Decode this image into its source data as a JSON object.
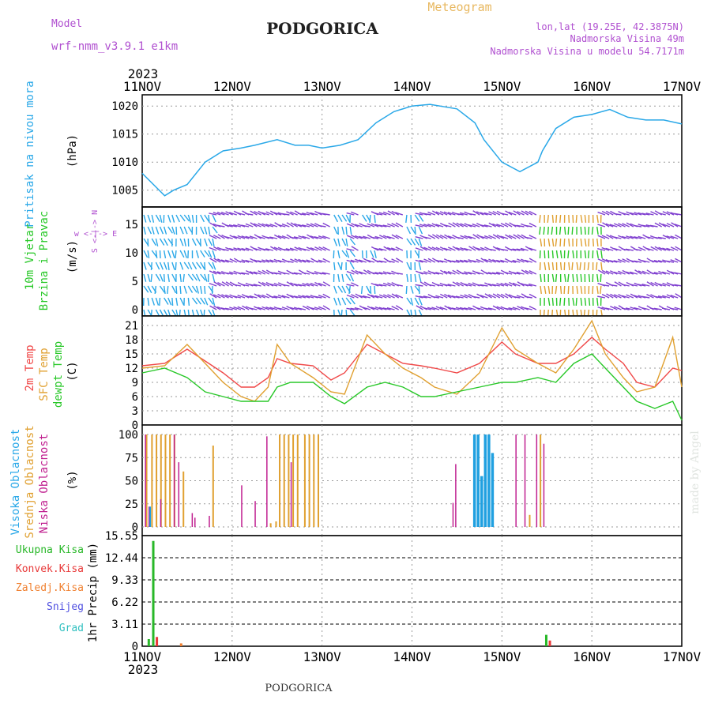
{
  "header": {
    "model_label": "Model",
    "model_name": "wrf-nmm_v3.9.1 e1km",
    "station": "PODGORICA",
    "chart_kind": "Meteogram",
    "coords": "lon,lat (19.25E, 42.3875N)",
    "elevation": "Nadmorska Visina 49m",
    "model_elevation": "Nadmorska Visina u modelu 54.7171m",
    "year_top": "2023",
    "year_bottom": "2023",
    "footer_station": "PODGORICA",
    "credit": "made by Angel"
  },
  "colors": {
    "pressure": "#2aa8e8",
    "temp2m": "#f04848",
    "sfc": "#e0a030",
    "dewpt": "#28c828",
    "high_cloud": "#20a0e0",
    "mid_cloud": "#e0a030",
    "low_cloud": "#c02090",
    "total_precip": "#28b828",
    "conv": "#e83838",
    "frozen": "#f08030",
    "snow": "#5050e0",
    "hail": "#30c0c0",
    "purple": "#b050d0"
  },
  "x_axis": {
    "ticks": [
      "11NOV",
      "12NOV",
      "13NOV",
      "14NOV",
      "15NOV",
      "16NOV",
      "17NOV"
    ]
  },
  "panel_labels": {
    "pressure": {
      "name": "Pritisak na nivou mora",
      "unit": "(hPa)"
    },
    "wind": {
      "name1": "10m Vjetar",
      "name2": "Brzina i Pravac",
      "unit": "(m/s)",
      "compass": "w <-|-> E",
      "compass_ns": "S <-|-> N"
    },
    "temp": {
      "t2m": "2m Temp",
      "sfc": "SFC Temp",
      "dew": "dewpt Temp",
      "unit": "(C)"
    },
    "cloud": {
      "high": "Visoka Oblacnost",
      "mid": "Srednja Oblacnost",
      "low": "Niska Oblacnost",
      "unit": "(%)"
    },
    "precip": {
      "total": "Ukupna Kisa",
      "conv": "Konvek.Kisa",
      "frozen": "Zaledj.Kisa",
      "snow": "Snijeg",
      "hail": "Grad",
      "unit": "1hr Precip (mm)"
    }
  },
  "chart_data": [
    {
      "type": "line",
      "name": "pressure",
      "ylabel": "(hPa)",
      "ylim": [
        1002,
        1022
      ],
      "yticks": [
        1005,
        1010,
        1015,
        1020
      ],
      "x_days": [
        0,
        0.25,
        0.35,
        0.5,
        0.7,
        0.9,
        1.1,
        1.25,
        1.5,
        1.7,
        1.85,
        2.0,
        2.2,
        2.4,
        2.6,
        2.8,
        3.0,
        3.2,
        3.5,
        3.7,
        3.8,
        4.0,
        4.2,
        4.4,
        4.45,
        4.6,
        4.8,
        5.0,
        5.2,
        5.4,
        5.6,
        5.8,
        6.0
      ],
      "values": [
        1008,
        1004,
        1005,
        1006,
        1010,
        1012,
        1012.5,
        1013,
        1014,
        1013,
        1013,
        1012.5,
        1013,
        1014,
        1017,
        1019,
        1020,
        1020.3,
        1019.5,
        1017,
        1014,
        1010,
        1008.3,
        1010,
        1012,
        1016,
        1018,
        1018.5,
        1019.4,
        1018,
        1017.5,
        1017.5,
        1016.8
      ]
    },
    {
      "type": "line",
      "name": "temperature",
      "ylabel": "(C)",
      "ylim": [
        0,
        23
      ],
      "yticks": [
        0,
        3,
        6,
        9,
        12,
        15,
        18,
        21
      ],
      "x_days": [
        0,
        0.25,
        0.5,
        0.7,
        0.9,
        1.1,
        1.25,
        1.4,
        1.5,
        1.65,
        1.9,
        2.1,
        2.25,
        2.5,
        2.7,
        2.9,
        3.1,
        3.25,
        3.5,
        3.75,
        4.0,
        4.15,
        4.4,
        4.6,
        4.8,
        5.0,
        5.15,
        5.35,
        5.5,
        5.7,
        5.9,
        6.0
      ],
      "series": [
        {
          "name": "2m Temp",
          "values": [
            12.5,
            13,
            16,
            13.5,
            11,
            8,
            8,
            10,
            14,
            13,
            12.5,
            9.5,
            11,
            17,
            15,
            13,
            12.5,
            12,
            11,
            13,
            17.5,
            15,
            13,
            13,
            15,
            18.5,
            16,
            13,
            9,
            8,
            12,
            11.5
          ]
        },
        {
          "name": "SFC Temp",
          "values": [
            12,
            12.5,
            17,
            13,
            9,
            6,
            5,
            8,
            17,
            13,
            10,
            7,
            6.5,
            19,
            15,
            12,
            10,
            8,
            6.5,
            11,
            20.5,
            16,
            13,
            11,
            16,
            22,
            15,
            10,
            7,
            8,
            18.5,
            8
          ]
        },
        {
          "name": "dewpt Temp",
          "values": [
            11,
            12,
            10,
            7,
            6,
            5,
            5,
            5,
            8,
            9,
            9,
            6,
            4.5,
            8,
            9,
            8,
            6,
            6,
            7,
            8,
            9,
            9,
            10,
            9,
            13,
            15,
            12,
            8,
            5,
            3.5,
            5,
            1
          ]
        }
      ]
    }
  ]
}
